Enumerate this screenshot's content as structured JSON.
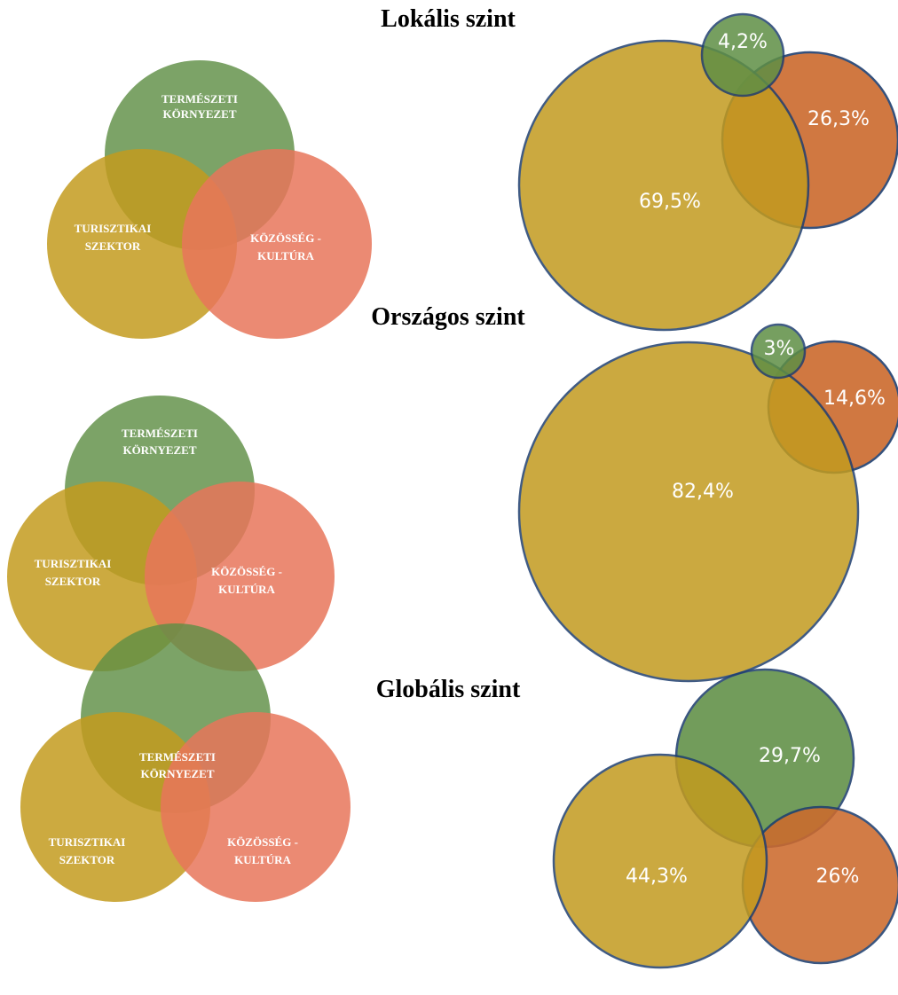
{
  "colors": {
    "green": "#5f8f45",
    "mustard": "#c39b1f",
    "salmon": "#e8765a",
    "orange": "#cc6a2d",
    "outline": "#1f3f6f"
  },
  "labels": {
    "nature": [
      "TERMÉSZETI",
      "KÖRNYEZET"
    ],
    "tourism": [
      "TURISZTIKAI",
      "SZEKTOR"
    ],
    "community": [
      "KÖZÖSSÉG -",
      "KULTÚRA"
    ]
  },
  "sections": [
    {
      "title": "Lokális szint",
      "values": {
        "nature": "4,2%",
        "community": "26,3%",
        "tourism": "69,5%"
      }
    },
    {
      "title": "Országos szint",
      "values": {
        "nature": "3%",
        "community": "14,6%",
        "tourism": "82,4%"
      }
    },
    {
      "title": "Globális szint",
      "values": {
        "nature": "29,7%",
        "community": "26%",
        "tourism": "44,3%"
      }
    }
  ]
}
